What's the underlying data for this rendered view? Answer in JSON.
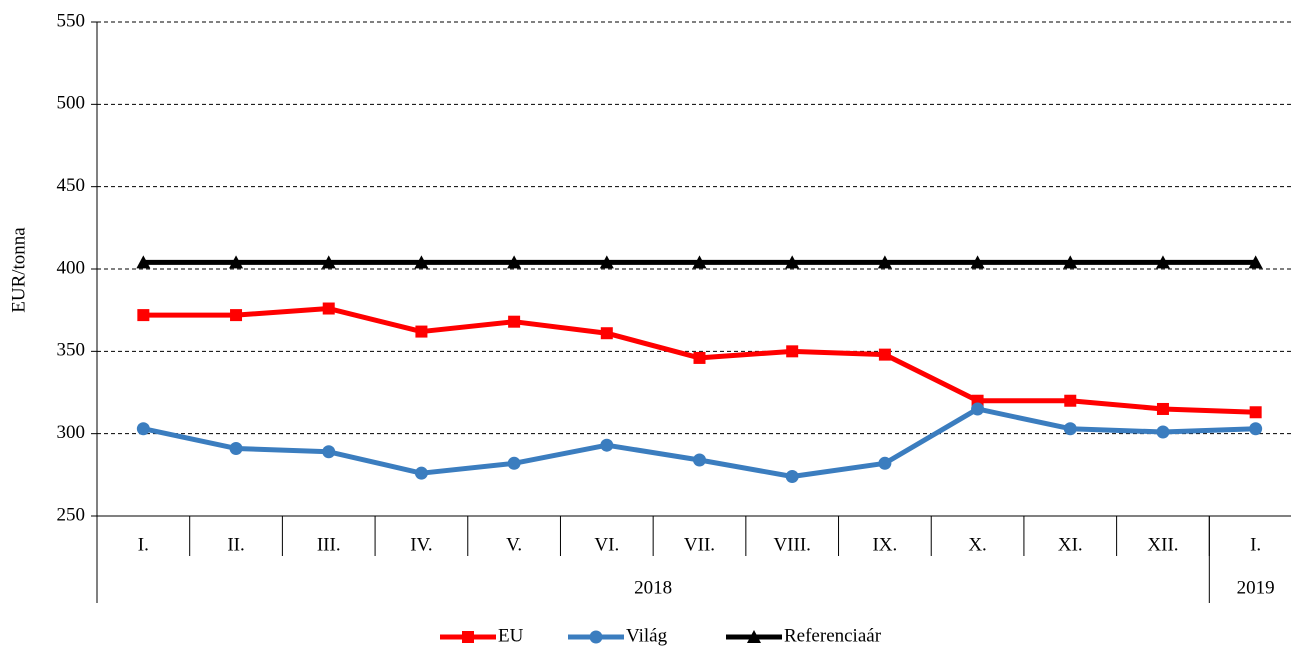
{
  "chart_data": {
    "type": "line",
    "y_label": "EUR/tonna",
    "categories": [
      "I.",
      "II.",
      "III.",
      "IV.",
      "V.",
      "VI.",
      "VII.",
      "VIII.",
      "IX.",
      "X.",
      "XI.",
      "XII.",
      "I."
    ],
    "groups": [
      {
        "label": "2018",
        "span": 12
      },
      {
        "label": "2019",
        "span": 1
      }
    ],
    "series": [
      {
        "name": "EU",
        "color": "#ff0000",
        "marker": "square",
        "values": [
          372,
          372,
          376,
          362,
          368,
          361,
          346,
          350,
          348,
          320,
          320,
          315,
          313
        ]
      },
      {
        "name": "Világ",
        "color": "#3b7dbf",
        "marker": "circle",
        "values": [
          303,
          291,
          289,
          276,
          282,
          293,
          284,
          274,
          282,
          315,
          303,
          301,
          303
        ]
      },
      {
        "name": "Referenciaár",
        "color": "#000000",
        "marker": "triangle",
        "values": [
          404,
          404,
          404,
          404,
          404,
          404,
          404,
          404,
          404,
          404,
          404,
          404,
          404
        ]
      }
    ],
    "ylim": [
      250,
      550
    ],
    "yticks": [
      250,
      300,
      350,
      400,
      450,
      500,
      550
    ],
    "grid": true,
    "legend": "bottom"
  }
}
